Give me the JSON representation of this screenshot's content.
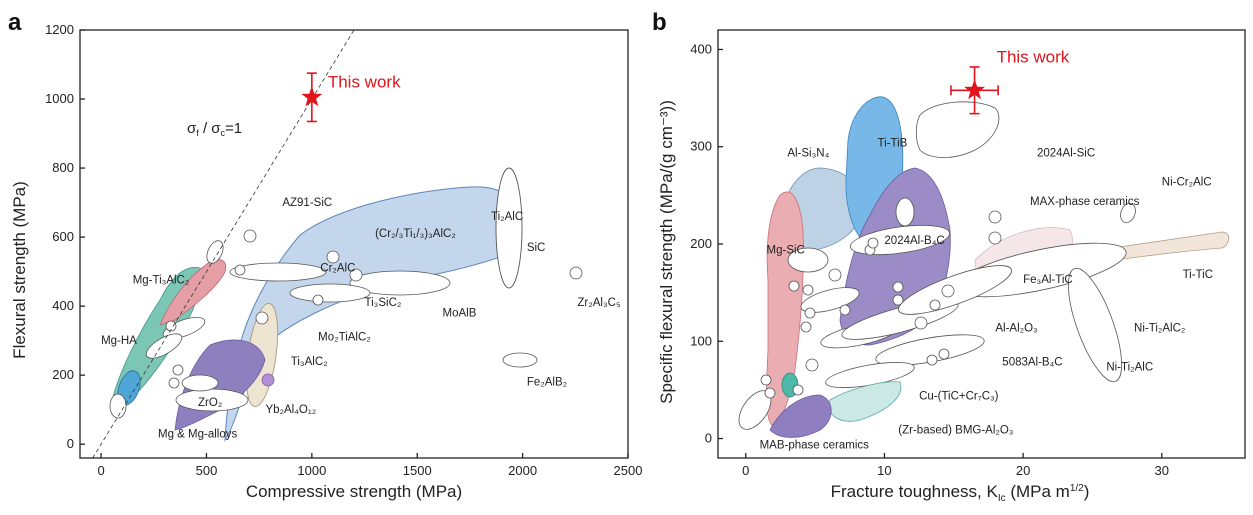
{
  "chart_data": [
    {
      "type": "scatter",
      "panel": "a",
      "xlabel": "Compressive strength (MPa)",
      "ylabel": "Flexural strength (MPa)",
      "xlim": [
        -100,
        2500
      ],
      "ylim": [
        -40,
        1200
      ],
      "xticks": [
        0,
        500,
        1000,
        1500,
        2000,
        2500
      ],
      "yticks": [
        0,
        200,
        400,
        600,
        800,
        1000,
        1200
      ],
      "reference_line": {
        "label": "σf / σc=1",
        "slope": 1
      },
      "this_work": {
        "label": "This work",
        "x": 1000,
        "y": 1005,
        "yerr": 70
      },
      "regions": [
        {
          "name": "Ti₂AlC",
          "color": "#bcd3ec",
          "label_x": 1850,
          "label_y": 650
        },
        {
          "name": "Ti₃AlC₂",
          "color": "#ece3cf",
          "label_x": 900,
          "label_y": 230
        },
        {
          "name": "Yb₂Al₄O₁₂",
          "color": "#8e7fbf",
          "label_x": 780,
          "label_y": 90
        },
        {
          "name": "Mg-Ti₃AlC₂",
          "color": "#e59ea5",
          "label_x": 150,
          "label_y": 465
        },
        {
          "name": "Mg-HA",
          "color": "#62b6c6",
          "label_x": 0,
          "label_y": 290
        },
        {
          "name": "Mg & Mg-alloys",
          "color": "#85c9b8",
          "label_x": 270,
          "label_y": 20
        },
        {
          "name": "ZrO₂",
          "color": "#ffffff",
          "label_x": 460,
          "label_y": 110
        },
        {
          "name": "AZ91-SiC",
          "color": "#ffffff",
          "label_x": 860,
          "label_y": 690
        },
        {
          "name": "Cr₂AlC",
          "color": "#ffffff",
          "label_x": 1040,
          "label_y": 500
        },
        {
          "name": "(Cr₂/₃Ti₁/₃)₃AlC₂",
          "color": "#ffffff",
          "label_x": 1300,
          "label_y": 600
        },
        {
          "name": "Ti₃SiC₂",
          "color": "#ffffff",
          "label_x": 1250,
          "label_y": 400
        },
        {
          "name": "Mo₂TiAlC₂",
          "color": "#ffffff",
          "label_x": 1030,
          "label_y": 300
        },
        {
          "name": "MoAlB",
          "color": "#ffffff",
          "label_x": 1620,
          "label_y": 370
        },
        {
          "name": "SiC",
          "color": "#ffffff",
          "label_x": 2020,
          "label_y": 560
        },
        {
          "name": "Zr₂Al₃C₅",
          "color": "#ffffff",
          "label_x": 2260,
          "label_y": 400
        },
        {
          "name": "Fe₂AlB₂",
          "color": "#ffffff",
          "label_x": 2020,
          "label_y": 170
        }
      ]
    },
    {
      "type": "scatter",
      "panel": "b",
      "xlabel": "Fracture toughness, K",
      "xlabel_sub": "Ic",
      "xlabel_unit": " (MPa m",
      "xlabel_sup": "1/2",
      "ylabel": "Specific flexural strength (MPa/(g cm⁻³))",
      "xlim": [
        -2,
        36
      ],
      "ylim": [
        -20,
        420
      ],
      "xticks": [
        0,
        10,
        20,
        30
      ],
      "yticks": [
        0,
        100,
        200,
        300,
        400
      ],
      "this_work": {
        "label": "This work",
        "x": 16.5,
        "y": 358,
        "yerr": 24,
        "xerr": 1.7
      },
      "regions": [
        {
          "name": "Ti-TiB",
          "color": "#72b5e6",
          "label_x": 9.5,
          "label_y": 300
        },
        {
          "name": "MAX-phase ceramics",
          "color": "#8e80bd",
          "label_x": 20.5,
          "label_y": 240
        },
        {
          "name": "2024Al-SiC",
          "color": "#ffffff",
          "label_x": 21,
          "label_y": 290
        },
        {
          "name": "Al-Si₃N₄",
          "color": "#a9c5de",
          "label_x": 3,
          "label_y": 290
        },
        {
          "name": "Mg-SiC",
          "color": "#e6a4aa",
          "label_x": 1.5,
          "label_y": 190
        },
        {
          "name": "2024Al-B₄C",
          "color": "#ffffff",
          "label_x": 10,
          "label_y": 200
        },
        {
          "name": "Fe₃Al-TiC",
          "color": "#ffffff",
          "label_x": 20,
          "label_y": 160
        },
        {
          "name": "Ti-TiC",
          "color": "#f3e7de",
          "label_x": 31.5,
          "label_y": 165
        },
        {
          "name": "Ni-Cr₂AlC",
          "color": "#ffffff",
          "label_x": 30,
          "label_y": 260
        },
        {
          "name": "Ni-Ti₂AlC₂",
          "color": "#ffffff",
          "label_x": 28,
          "label_y": 110
        },
        {
          "name": "Ni-Ti₂AlC",
          "color": "#ffffff",
          "label_x": 26,
          "label_y": 70
        },
        {
          "name": "Al-Al₂O₃",
          "color": "#ffffff",
          "label_x": 18,
          "label_y": 110
        },
        {
          "name": "5083Al-B₄C",
          "color": "#ffffff",
          "label_x": 18.5,
          "label_y": 75
        },
        {
          "name": "Cu-(TiC+Cr₇C₃)",
          "color": "#bfe3e1",
          "label_x": 12.5,
          "label_y": 40
        },
        {
          "name": "(Zr-based) BMG-Al₂O₃",
          "color": "#ffffff",
          "label_x": 11,
          "label_y": 5
        },
        {
          "name": "MAB-phase ceramics",
          "color": "#8f7fc0",
          "label_x": 1,
          "label_y": -10
        }
      ]
    }
  ],
  "panels": {
    "a": {
      "letter": "a",
      "x_title": "Compressive strength (MPa)",
      "y_title": "Flexural strength (MPa)"
    },
    "b": {
      "letter": "b",
      "x_title_main": "Fracture toughness, ",
      "y_title": "Specific flexural strength (MPa/(g cm⁻³))"
    }
  },
  "colors": {
    "this_work": "#e0151c",
    "axes": "#222222"
  }
}
